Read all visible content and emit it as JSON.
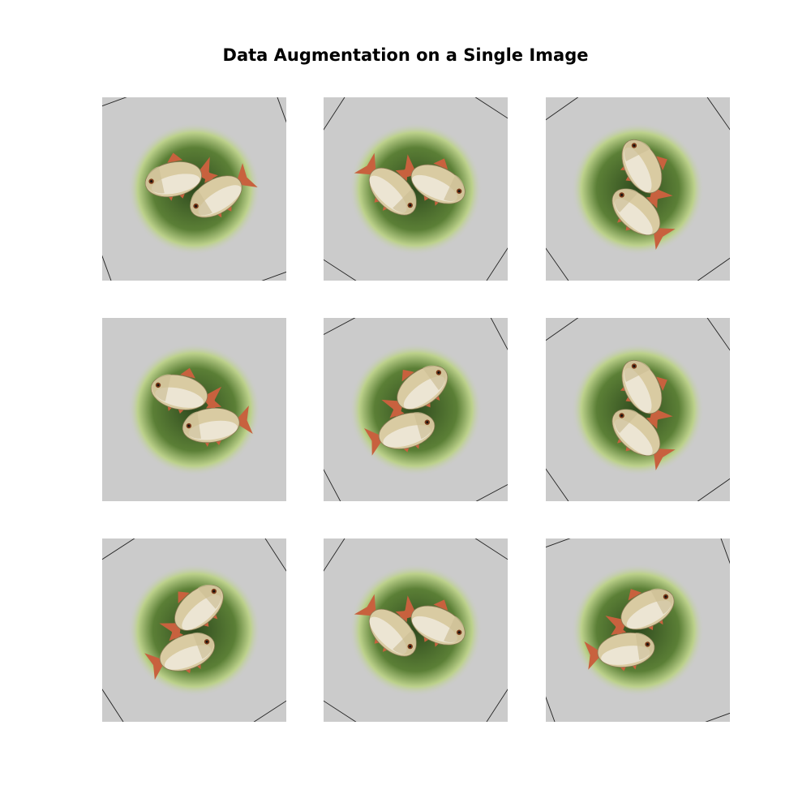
{
  "figure": {
    "title": "Data Augmentation on a Single Image"
  },
  "colors": {
    "background": "#ffffff",
    "panel_fill": "#cbcbcb",
    "edge_line": "#222222",
    "moss_dark": "#2f4a1e",
    "moss_mid": "#5b7f36",
    "moss_light": "#bcd18b",
    "fish_body": "#d9cba2",
    "fish_belly": "#efeadc",
    "fish_fin": "#c8613e"
  },
  "panels": [
    {
      "rotation_deg": -20,
      "flip_h": false
    },
    {
      "rotation_deg": 33,
      "flip_h": true
    },
    {
      "rotation_deg": 55,
      "flip_h": false
    },
    {
      "rotation_deg": 4,
      "flip_h": false
    },
    {
      "rotation_deg": -28,
      "flip_h": true
    },
    {
      "rotation_deg": 55,
      "flip_h": false
    },
    {
      "rotation_deg": -33,
      "flip_h": true
    },
    {
      "rotation_deg": 33,
      "flip_h": true
    },
    {
      "rotation_deg": -20,
      "flip_h": true
    }
  ]
}
